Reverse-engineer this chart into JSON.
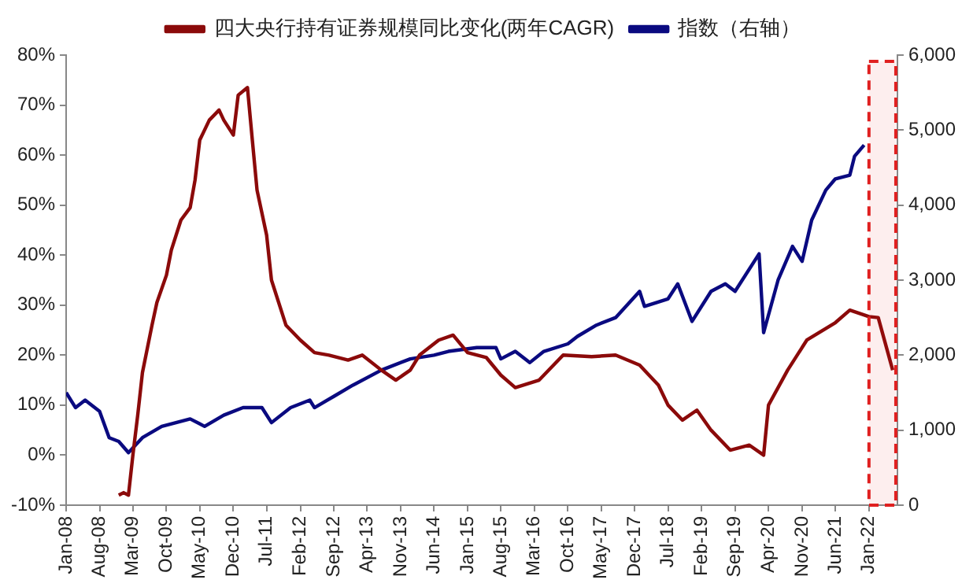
{
  "chart_data": {
    "type": "line",
    "series": [
      {
        "name": "四大央行持有证券规模同比变化(两年CAGR)",
        "color": "#8b0a0a",
        "axis": "y",
        "x": [
          "2008-12",
          "2009-01",
          "2009-02",
          "2009-03",
          "2009-04",
          "2009-05",
          "2009-07",
          "2009-08",
          "2009-10",
          "2009-11",
          "2010-01",
          "2010-03",
          "2010-04",
          "2010-05",
          "2010-07",
          "2010-09",
          "2010-10",
          "2010-12",
          "2011-01",
          "2011-03",
          "2011-04",
          "2011-05",
          "2011-07",
          "2011-08",
          "2011-11",
          "2012-02",
          "2012-05",
          "2012-08",
          "2012-12",
          "2013-03",
          "2013-07",
          "2013-10",
          "2014-01",
          "2014-03",
          "2014-07",
          "2014-10",
          "2015-01",
          "2015-05",
          "2015-08",
          "2015-11",
          "2016-04",
          "2016-09",
          "2017-03",
          "2017-08",
          "2018-01",
          "2018-05",
          "2018-07",
          "2018-10",
          "2019-01",
          "2019-04",
          "2019-08",
          "2019-12",
          "2020-03",
          "2020-04",
          "2020-08",
          "2020-12",
          "2021-06",
          "2021-09",
          "2022-01",
          "2022-03",
          "2022-06"
        ],
        "values": [
          -8,
          -7.5,
          -8,
          0,
          8,
          16.5,
          26,
          30.5,
          36,
          41,
          47,
          49.5,
          55,
          63,
          67,
          69,
          67,
          64,
          72,
          73.5,
          63,
          53,
          44,
          35,
          26,
          23,
          20.5,
          20,
          19,
          20,
          17,
          15,
          17,
          20,
          23,
          24,
          20.5,
          19.5,
          16,
          13.5,
          15,
          20,
          19.7,
          20,
          18,
          14,
          10,
          7,
          9,
          5,
          1,
          2,
          0,
          10,
          17,
          23,
          26.5,
          29,
          27.7,
          27.5,
          17
        ]
      },
      {
        "name": "指数（右轴）",
        "color": "#0a0a80",
        "axis": "y2",
        "x": [
          "2008-01",
          "2008-03",
          "2008-05",
          "2008-08",
          "2008-10",
          "2008-12",
          "2009-02",
          "2009-05",
          "2009-09",
          "2010-03",
          "2010-06",
          "2010-10",
          "2011-02",
          "2011-06",
          "2011-08",
          "2011-12",
          "2012-04",
          "2012-05",
          "2012-09",
          "2013-01",
          "2013-07",
          "2014-01",
          "2014-06",
          "2014-09",
          "2015-03",
          "2015-07",
          "2015-08",
          "2015-11",
          "2016-02",
          "2016-05",
          "2016-10",
          "2016-12",
          "2017-04",
          "2017-08",
          "2018-01",
          "2018-02",
          "2018-07",
          "2018-09",
          "2018-12",
          "2019-04",
          "2019-07",
          "2019-09",
          "2020-02",
          "2020-03",
          "2020-06",
          "2020-09",
          "2020-11",
          "2021-01",
          "2021-04",
          "2021-06",
          "2021-09",
          "2021-10",
          "2021-12"
        ],
        "values": [
          1500,
          1300,
          1400,
          1250,
          900,
          850,
          700,
          900,
          1050,
          1150,
          1050,
          1200,
          1300,
          1300,
          1100,
          1300,
          1400,
          1300,
          1450,
          1600,
          1800,
          1950,
          2000,
          2050,
          2100,
          2100,
          1950,
          2050,
          1900,
          2050,
          2150,
          2250,
          2400,
          2500,
          2850,
          2650,
          2750,
          2950,
          2450,
          2850,
          2950,
          2850,
          3350,
          2300,
          3000,
          3450,
          3250,
          3800,
          4200,
          4350,
          4400,
          4650,
          4800
        ]
      }
    ],
    "xlim": [
      "2008-01",
      "2022-07"
    ],
    "xticks": [
      {
        "value": "2008-01",
        "label": "Jan-08"
      },
      {
        "value": "2008-08",
        "label": "Aug-08"
      },
      {
        "value": "2009-03",
        "label": "Mar-09"
      },
      {
        "value": "2009-10",
        "label": "Oct-09"
      },
      {
        "value": "2010-05",
        "label": "May-10"
      },
      {
        "value": "2010-12",
        "label": "Dec-10"
      },
      {
        "value": "2011-07",
        "label": "Jul-11"
      },
      {
        "value": "2012-02",
        "label": "Feb-12"
      },
      {
        "value": "2012-09",
        "label": "Sep-12"
      },
      {
        "value": "2013-04",
        "label": "Apr-13"
      },
      {
        "value": "2013-11",
        "label": "Nov-13"
      },
      {
        "value": "2014-06",
        "label": "Jun-14"
      },
      {
        "value": "2015-01",
        "label": "Jan-15"
      },
      {
        "value": "2015-08",
        "label": "Aug-15"
      },
      {
        "value": "2016-03",
        "label": "Mar-16"
      },
      {
        "value": "2016-10",
        "label": "Oct-16"
      },
      {
        "value": "2017-05",
        "label": "May-17"
      },
      {
        "value": "2017-12",
        "label": "Dec-17"
      },
      {
        "value": "2018-07",
        "label": "Jul-18"
      },
      {
        "value": "2019-02",
        "label": "Feb-19"
      },
      {
        "value": "2019-09",
        "label": "Sep-19"
      },
      {
        "value": "2020-04",
        "label": "Apr-20"
      },
      {
        "value": "2020-11",
        "label": "Nov-20"
      },
      {
        "value": "2021-06",
        "label": "Jun-21"
      },
      {
        "value": "2022-01",
        "label": "Jan-22"
      }
    ],
    "ylim": [
      -10,
      80
    ],
    "yticks": [
      {
        "value": -10,
        "label": "-10%"
      },
      {
        "value": 0,
        "label": "0%"
      },
      {
        "value": 10,
        "label": "10%"
      },
      {
        "value": 20,
        "label": "20%"
      },
      {
        "value": 30,
        "label": "30%"
      },
      {
        "value": 40,
        "label": "40%"
      },
      {
        "value": 50,
        "label": "50%"
      },
      {
        "value": 60,
        "label": "60%"
      },
      {
        "value": 70,
        "label": "70%"
      },
      {
        "value": 80,
        "label": "80%"
      }
    ],
    "y2lim": [
      0,
      6000
    ],
    "y2ticks": [
      {
        "value": 0,
        "label": "0"
      },
      {
        "value": 1000,
        "label": "1,000"
      },
      {
        "value": 2000,
        "label": "2,000"
      },
      {
        "value": 3000,
        "label": "3,000"
      },
      {
        "value": 4000,
        "label": "4,000"
      },
      {
        "value": 5000,
        "label": "5,000"
      },
      {
        "value": 6000,
        "label": "6,000"
      }
    ],
    "bands": [
      {
        "axis": "x",
        "from": "2022-01",
        "to": "2022-07",
        "color": "#e02020"
      }
    ],
    "grid": false,
    "legend": "top",
    "marker": "none",
    "line_style": "solid"
  }
}
